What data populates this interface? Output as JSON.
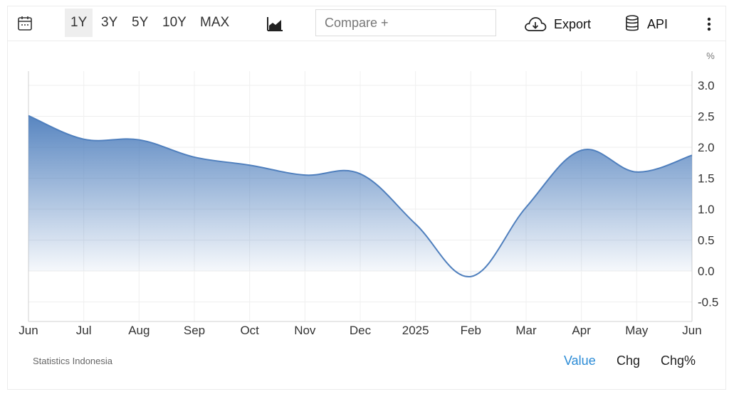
{
  "toolbar": {
    "calendar_icon": "calendar-icon",
    "ranges": [
      {
        "label": "1Y",
        "active": true
      },
      {
        "label": "3Y",
        "active": false
      },
      {
        "label": "5Y",
        "active": false
      },
      {
        "label": "10Y",
        "active": false
      },
      {
        "label": "MAX",
        "active": false
      }
    ],
    "chart_type_icon": "area-chart-icon",
    "compare_placeholder": "Compare +",
    "export_label": "Export",
    "export_icon": "cloud-download-icon",
    "api_label": "API",
    "api_icon": "database-icon",
    "more_icon": "more-vertical-icon"
  },
  "footer": {
    "source": "Statistics Indonesia",
    "modes": [
      {
        "label": "Value",
        "active": true
      },
      {
        "label": "Chg",
        "active": false
      },
      {
        "label": "Chg%",
        "active": false
      }
    ]
  },
  "colors": {
    "line": "#4f7fbd",
    "fill_top": "#4f7fbd",
    "accent": "#2a8bd6"
  },
  "chart_data": {
    "type": "area",
    "unit_label": "%",
    "x": [
      "Jun",
      "Jul",
      "Aug",
      "Sep",
      "Oct",
      "Nov",
      "Dec",
      "2025",
      "Feb",
      "Mar",
      "Apr",
      "May",
      "Jun"
    ],
    "values": [
      2.51,
      2.13,
      2.12,
      1.84,
      1.71,
      1.55,
      1.57,
      0.76,
      -0.09,
      1.03,
      1.95,
      1.6,
      1.87
    ],
    "yticks": [
      -0.5,
      0.0,
      0.5,
      1.0,
      1.5,
      2.0,
      2.5,
      3.0
    ],
    "ytick_labels": [
      "-0.5",
      "0.0",
      "0.5",
      "1.0",
      "1.5",
      "2.0",
      "2.5",
      "3.0"
    ],
    "ylim": [
      -0.8,
      3.2
    ],
    "y_axis_side": "right",
    "grid": true,
    "legend": "none"
  }
}
